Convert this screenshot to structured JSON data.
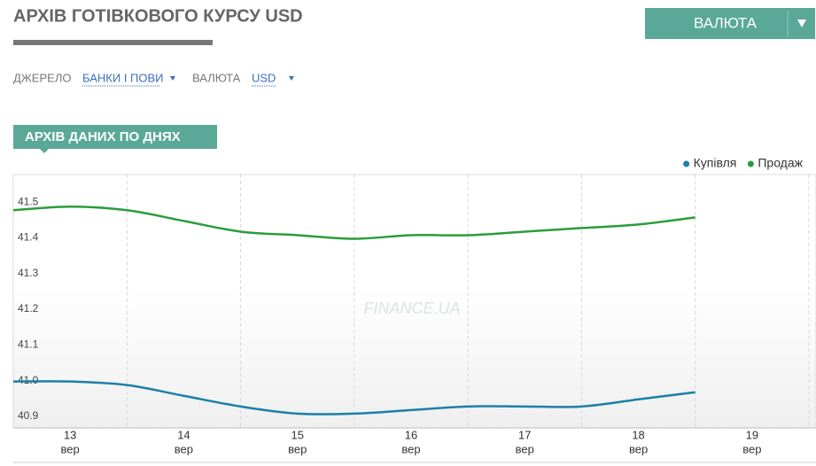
{
  "header": {
    "title": "АРХІВ ГОТІВКОВОГО КУРСУ USD",
    "button": "ВАЛЮТА"
  },
  "filters": [
    {
      "label": "ДЖЕРЕЛО",
      "value": "БАНКИ І ПОВИ"
    },
    {
      "label": "ВАЛЮТА",
      "value": "USD"
    }
  ],
  "section_tab": "АРХІВ ДАНИХ ПО ДНЯХ",
  "watermark": "FINANCE.UA",
  "chart_data": {
    "type": "line",
    "x": [
      12.5,
      13,
      13.5,
      14,
      14.5,
      15,
      15.5,
      16,
      16.5,
      17,
      17.5,
      18,
      18.5
    ],
    "series": [
      {
        "name": "Купівля",
        "color": "#1b7fa8",
        "values": [
          41.0,
          41.0,
          40.99,
          40.96,
          40.93,
          40.91,
          40.91,
          40.92,
          40.93,
          40.93,
          40.93,
          40.95,
          40.97
        ]
      },
      {
        "name": "Продаж",
        "color": "#2a9d3c",
        "values": [
          41.48,
          41.49,
          41.48,
          41.45,
          41.42,
          41.41,
          41.4,
          41.41,
          41.41,
          41.42,
          41.43,
          41.44,
          41.46
        ]
      }
    ],
    "xlim": [
      12.5,
      19.5
    ],
    "xticks": [
      13,
      14,
      15,
      16,
      17,
      18,
      19
    ],
    "xtick_sublabels": [
      "вер",
      "вер",
      "вер",
      "вер",
      "вер",
      "вер",
      "вер"
    ],
    "ylim": [
      40.87,
      41.58
    ],
    "yticks": [
      40.9,
      {
        "value": 41.0,
        "label": "41.0"
      },
      41.1,
      41.2,
      41.3,
      41.4,
      41.5
    ],
    "legend": "top-right"
  }
}
